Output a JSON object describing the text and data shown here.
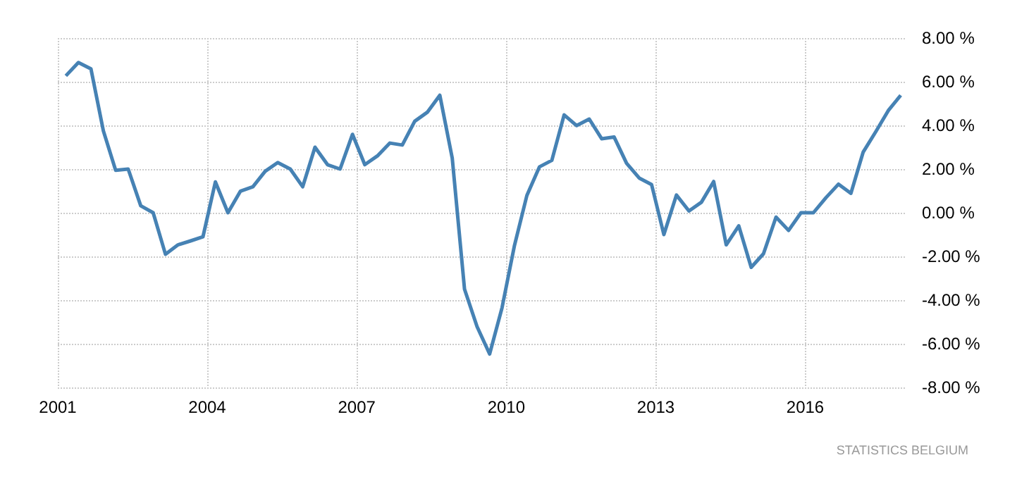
{
  "chart_data": {
    "type": "line",
    "x": [
      "2001-03",
      "2001-06",
      "2001-09",
      "2001-12",
      "2002-03",
      "2002-06",
      "2002-09",
      "2002-12",
      "2003-03",
      "2003-06",
      "2003-09",
      "2003-12",
      "2004-03",
      "2004-06",
      "2004-09",
      "2004-12",
      "2005-03",
      "2005-06",
      "2005-09",
      "2005-12",
      "2006-03",
      "2006-06",
      "2006-09",
      "2006-12",
      "2007-03",
      "2007-06",
      "2007-09",
      "2007-12",
      "2008-03",
      "2008-06",
      "2008-09",
      "2008-12",
      "2009-03",
      "2009-06",
      "2009-09",
      "2009-12",
      "2010-03",
      "2010-06",
      "2010-09",
      "2010-12",
      "2011-03",
      "2011-06",
      "2011-09",
      "2011-12",
      "2012-03",
      "2012-06",
      "2012-09",
      "2012-12",
      "2013-03",
      "2013-06",
      "2013-09",
      "2013-12",
      "2014-03",
      "2014-06",
      "2014-09",
      "2014-12",
      "2015-03",
      "2015-06",
      "2015-09",
      "2015-12",
      "2016-03",
      "2016-06",
      "2016-09",
      "2016-12",
      "2017-03",
      "2017-06",
      "2017-09",
      "2017-12"
    ],
    "series": [
      {
        "color": "#4682b4",
        "values": [
          6.27,
          6.88,
          6.59,
          3.75,
          1.94,
          2.0,
          0.32,
          0.0,
          -1.9,
          -1.47,
          -1.29,
          -1.1,
          1.41,
          0.0,
          0.99,
          1.19,
          1.9,
          2.3,
          2.0,
          1.19,
          3.0,
          2.2,
          2.0,
          3.59,
          2.2,
          2.6,
          3.19,
          3.1,
          4.19,
          4.6,
          5.38,
          2.5,
          -3.5,
          -5.22,
          -6.47,
          -4.35,
          -1.53,
          0.79,
          2.1,
          2.4,
          4.48,
          3.99,
          4.29,
          3.39,
          3.47,
          2.26,
          1.59,
          1.29,
          -1.0,
          0.81,
          0.08,
          0.48,
          1.43,
          -1.47,
          -0.6,
          -2.5,
          -1.88,
          -0.2,
          -0.81,
          0.0,
          0.0,
          0.69,
          1.31,
          0.89,
          2.78,
          3.71,
          4.68,
          5.38
        ]
      }
    ],
    "xlim": [
      "2001",
      "2018"
    ],
    "xticks": [
      "2001",
      "2004",
      "2007",
      "2010",
      "2013",
      "2016"
    ],
    "ylim": [
      -8,
      8
    ],
    "yticks": [
      {
        "value": -8,
        "label": "-8.00 %"
      },
      {
        "value": -6,
        "label": "-6.00 %"
      },
      {
        "value": -4,
        "label": "-4.00 %"
      },
      {
        "value": -2,
        "label": "-2.00 %"
      },
      {
        "value": 0,
        "label": "0.00 %"
      },
      {
        "value": 2,
        "label": "2.00 %"
      },
      {
        "value": 4,
        "label": "4.00 %"
      },
      {
        "value": 6,
        "label": "6.00 %"
      },
      {
        "value": 8,
        "label": "8.00 %"
      }
    ],
    "grid": true,
    "marker": "none",
    "line_style": "solid",
    "annotations": [
      "STATISTICS BELGIUM"
    ]
  }
}
